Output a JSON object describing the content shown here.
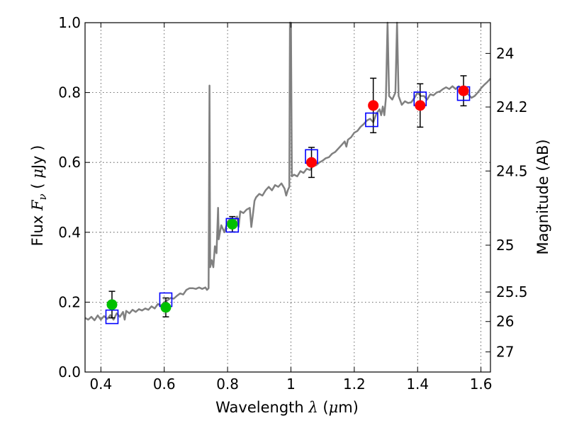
{
  "chart_data": {
    "type": "scatter",
    "xlabel": {
      "pre": "Wavelength  ",
      "sym": "λ",
      "post": " (",
      "mu": "μ",
      "unit": "m)"
    },
    "ylabel": {
      "pre": "Flux  ",
      "sym": "F",
      "sub": "ν",
      "mid": "  ( ",
      "mu": "μ",
      "unit": "Jy )"
    },
    "y2label": "Magnitude (AB)",
    "xlim": [
      0.35,
      1.63
    ],
    "ylim": [
      0.0,
      1.0
    ],
    "grid": true,
    "x_ticks": [
      {
        "v": 0.4,
        "label": "0.4"
      },
      {
        "v": 0.6,
        "label": "0.6"
      },
      {
        "v": 0.8,
        "label": "0.8"
      },
      {
        "v": 1.0,
        "label": "1"
      },
      {
        "v": 1.2,
        "label": "1.2"
      },
      {
        "v": 1.4,
        "label": "1.4"
      },
      {
        "v": 1.6,
        "label": "1.6"
      }
    ],
    "y_ticks": [
      {
        "v": 0.0,
        "label": "0.0"
      },
      {
        "v": 0.2,
        "label": "0.2"
      },
      {
        "v": 0.4,
        "label": "0.4"
      },
      {
        "v": 0.6,
        "label": "0.6"
      },
      {
        "v": 0.8,
        "label": "0.8"
      },
      {
        "v": 1.0,
        "label": "1.0"
      }
    ],
    "y2_ticks": [
      {
        "mag": 24,
        "label": "24"
      },
      {
        "mag": 24.2,
        "label": "24.2"
      },
      {
        "mag": 24.5,
        "label": "24.5"
      },
      {
        "mag": 25,
        "label": "25"
      },
      {
        "mag": 25.5,
        "label": "25.5"
      },
      {
        "mag": 26,
        "label": "26"
      },
      {
        "mag": 27,
        "label": "27"
      }
    ],
    "colors": {
      "spectrum": "#808080",
      "green": "#00c000",
      "red": "#ff0000",
      "model_box": "#0000ff",
      "errorbar": "#000000"
    },
    "spectrum": [
      [
        0.35,
        0.155
      ],
      [
        0.36,
        0.15
      ],
      [
        0.37,
        0.158
      ],
      [
        0.38,
        0.148
      ],
      [
        0.39,
        0.162
      ],
      [
        0.4,
        0.15
      ],
      [
        0.41,
        0.16
      ],
      [
        0.42,
        0.152
      ],
      [
        0.43,
        0.163
      ],
      [
        0.44,
        0.15
      ],
      [
        0.45,
        0.168
      ],
      [
        0.46,
        0.158
      ],
      [
        0.47,
        0.172
      ],
      [
        0.475,
        0.15
      ],
      [
        0.48,
        0.175
      ],
      [
        0.49,
        0.168
      ],
      [
        0.5,
        0.178
      ],
      [
        0.51,
        0.172
      ],
      [
        0.52,
        0.18
      ],
      [
        0.53,
        0.176
      ],
      [
        0.54,
        0.182
      ],
      [
        0.55,
        0.178
      ],
      [
        0.56,
        0.188
      ],
      [
        0.57,
        0.182
      ],
      [
        0.58,
        0.195
      ],
      [
        0.59,
        0.19
      ],
      [
        0.6,
        0.2
      ],
      [
        0.61,
        0.205
      ],
      [
        0.62,
        0.212
      ],
      [
        0.63,
        0.21
      ],
      [
        0.64,
        0.218
      ],
      [
        0.65,
        0.225
      ],
      [
        0.66,
        0.222
      ],
      [
        0.67,
        0.235
      ],
      [
        0.68,
        0.24
      ],
      [
        0.69,
        0.24
      ],
      [
        0.7,
        0.238
      ],
      [
        0.71,
        0.242
      ],
      [
        0.72,
        0.238
      ],
      [
        0.73,
        0.242
      ],
      [
        0.735,
        0.235
      ],
      [
        0.74,
        0.24
      ],
      [
        0.743,
        0.82
      ],
      [
        0.745,
        0.3
      ],
      [
        0.75,
        0.32
      ],
      [
        0.755,
        0.3
      ],
      [
        0.76,
        0.36
      ],
      [
        0.765,
        0.34
      ],
      [
        0.77,
        0.47
      ],
      [
        0.772,
        0.38
      ],
      [
        0.78,
        0.42
      ],
      [
        0.79,
        0.4
      ],
      [
        0.8,
        0.43
      ],
      [
        0.81,
        0.44
      ],
      [
        0.82,
        0.43
      ],
      [
        0.83,
        0.445
      ],
      [
        0.835,
        0.415
      ],
      [
        0.84,
        0.46
      ],
      [
        0.85,
        0.455
      ],
      [
        0.86,
        0.465
      ],
      [
        0.87,
        0.47
      ],
      [
        0.875,
        0.415
      ],
      [
        0.88,
        0.45
      ],
      [
        0.885,
        0.49
      ],
      [
        0.89,
        0.5
      ],
      [
        0.9,
        0.51
      ],
      [
        0.91,
        0.505
      ],
      [
        0.92,
        0.52
      ],
      [
        0.93,
        0.53
      ],
      [
        0.94,
        0.52
      ],
      [
        0.95,
        0.535
      ],
      [
        0.96,
        0.53
      ],
      [
        0.97,
        0.54
      ],
      [
        0.98,
        0.525
      ],
      [
        0.985,
        0.505
      ],
      [
        0.99,
        0.52
      ],
      [
        0.995,
        0.53
      ],
      [
        0.997,
        1.0
      ],
      [
        1.0,
        1.0
      ],
      [
        1.003,
        0.56
      ],
      [
        1.01,
        0.565
      ],
      [
        1.02,
        0.56
      ],
      [
        1.03,
        0.575
      ],
      [
        1.04,
        0.57
      ],
      [
        1.05,
        0.582
      ],
      [
        1.06,
        0.578
      ],
      [
        1.07,
        0.59
      ],
      [
        1.08,
        0.592
      ],
      [
        1.09,
        0.6
      ],
      [
        1.1,
        0.605
      ],
      [
        1.11,
        0.612
      ],
      [
        1.12,
        0.615
      ],
      [
        1.13,
        0.625
      ],
      [
        1.14,
        0.63
      ],
      [
        1.15,
        0.64
      ],
      [
        1.16,
        0.65
      ],
      [
        1.17,
        0.66
      ],
      [
        1.175,
        0.645
      ],
      [
        1.18,
        0.665
      ],
      [
        1.19,
        0.672
      ],
      [
        1.2,
        0.685
      ],
      [
        1.21,
        0.69
      ],
      [
        1.22,
        0.702
      ],
      [
        1.23,
        0.71
      ],
      [
        1.24,
        0.72
      ],
      [
        1.25,
        0.725
      ],
      [
        1.26,
        0.715
      ],
      [
        1.27,
        0.74
      ],
      [
        1.28,
        0.752
      ],
      [
        1.285,
        0.735
      ],
      [
        1.29,
        0.76
      ],
      [
        1.295,
        0.735
      ],
      [
        1.3,
        0.785
      ],
      [
        1.305,
        1.0
      ],
      [
        1.31,
        0.79
      ],
      [
        1.32,
        0.78
      ],
      [
        1.33,
        0.8
      ],
      [
        1.335,
        1.0
      ],
      [
        1.34,
        0.79
      ],
      [
        1.35,
        0.765
      ],
      [
        1.36,
        0.775
      ],
      [
        1.37,
        0.77
      ],
      [
        1.38,
        0.772
      ],
      [
        1.39,
        0.785
      ],
      [
        1.4,
        0.8
      ],
      [
        1.41,
        0.79
      ],
      [
        1.42,
        0.79
      ],
      [
        1.43,
        0.78
      ],
      [
        1.44,
        0.795
      ],
      [
        1.45,
        0.792
      ],
      [
        1.46,
        0.8
      ],
      [
        1.47,
        0.803
      ],
      [
        1.48,
        0.81
      ],
      [
        1.49,
        0.815
      ],
      [
        1.5,
        0.81
      ],
      [
        1.51,
        0.818
      ],
      [
        1.52,
        0.81
      ],
      [
        1.53,
        0.818
      ],
      [
        1.54,
        0.81
      ],
      [
        1.55,
        0.8
      ],
      [
        1.56,
        0.795
      ],
      [
        1.57,
        0.785
      ],
      [
        1.58,
        0.79
      ],
      [
        1.59,
        0.8
      ],
      [
        1.6,
        0.812
      ],
      [
        1.61,
        0.822
      ],
      [
        1.62,
        0.83
      ],
      [
        1.63,
        0.84
      ]
    ],
    "points": [
      {
        "x": 0.435,
        "y": 0.193,
        "err": 0.038,
        "color": "green"
      },
      {
        "x": 0.605,
        "y": 0.185,
        "err": 0.027,
        "color": "green"
      },
      {
        "x": 0.815,
        "y": 0.423,
        "err": 0.022,
        "color": "green"
      },
      {
        "x": 1.065,
        "y": 0.6,
        "err": 0.043,
        "color": "red"
      },
      {
        "x": 1.26,
        "y": 0.763,
        "err": 0.078,
        "color": "red"
      },
      {
        "x": 1.408,
        "y": 0.763,
        "err": 0.062,
        "color": "red"
      },
      {
        "x": 1.545,
        "y": 0.805,
        "err": 0.043,
        "color": "red"
      }
    ],
    "model": [
      {
        "x": 0.435,
        "y": 0.158
      },
      {
        "x": 0.605,
        "y": 0.207
      },
      {
        "x": 0.815,
        "y": 0.42
      },
      {
        "x": 1.065,
        "y": 0.617
      },
      {
        "x": 1.255,
        "y": 0.722
      },
      {
        "x": 1.408,
        "y": 0.782
      },
      {
        "x": 1.545,
        "y": 0.797
      }
    ]
  }
}
